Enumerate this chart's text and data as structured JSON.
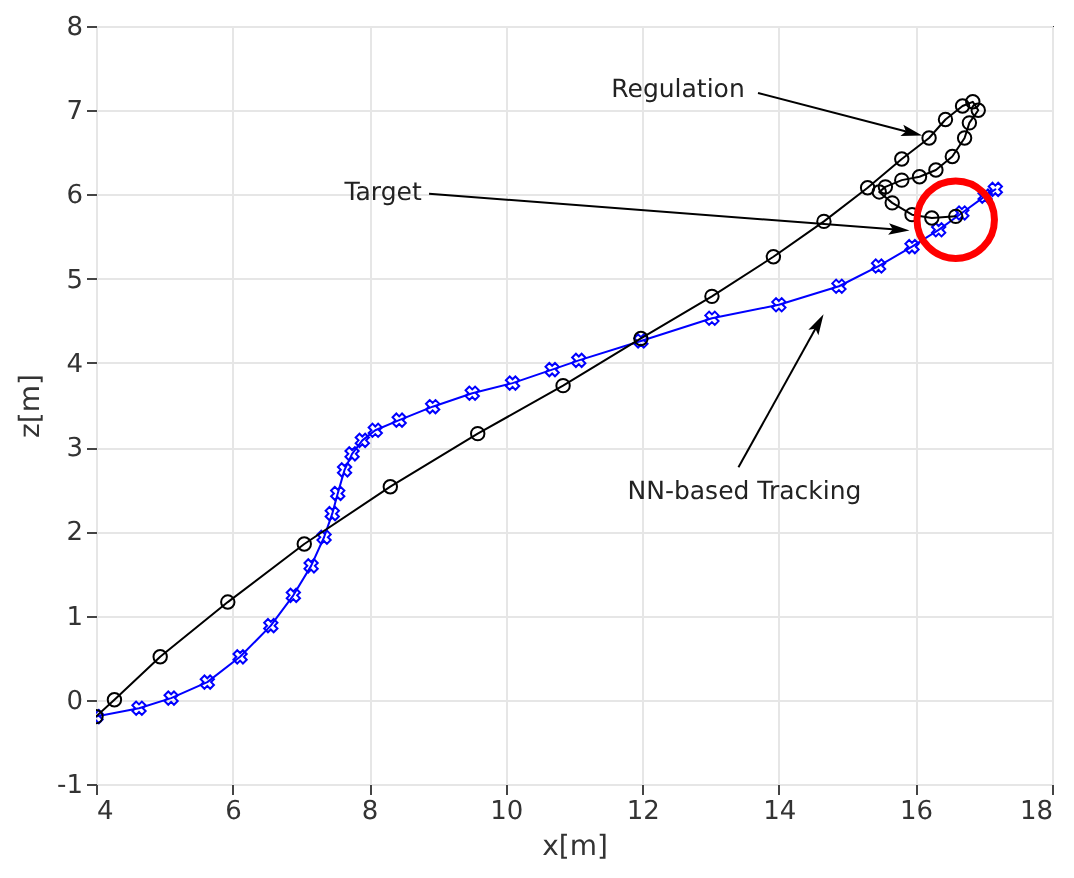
{
  "chart_data": {
    "type": "line",
    "xlabel": "x[m]",
    "ylabel": "z[m]",
    "xlim": [
      4,
      18
    ],
    "xticks": [
      4,
      6,
      8,
      10,
      12,
      14,
      16,
      18
    ],
    "ylim": [
      -1,
      8
    ],
    "yticks": [
      -1,
      0,
      1,
      2,
      3,
      4,
      5,
      6,
      7,
      8
    ],
    "grid": true,
    "series": [
      {
        "color": "#0000ff",
        "marker": "cross",
        "x": [
          4.0,
          4.63,
          5.1,
          5.63,
          6.11,
          6.56,
          6.89,
          7.15,
          7.34,
          7.46,
          7.54,
          7.64,
          7.75,
          7.9,
          8.09,
          8.44,
          8.93,
          9.51,
          10.1,
          10.68,
          11.07,
          11.98,
          13.02,
          14.0,
          14.88,
          15.46,
          15.95,
          16.34,
          16.68,
          17.02,
          17.17
        ],
        "values": [
          -0.2,
          -0.1,
          0.02,
          0.21,
          0.51,
          0.88,
          1.24,
          1.59,
          1.93,
          2.21,
          2.45,
          2.73,
          2.92,
          3.08,
          3.2,
          3.32,
          3.48,
          3.64,
          3.76,
          3.92,
          4.03,
          4.26,
          4.53,
          4.69,
          4.91,
          5.15,
          5.38,
          5.58,
          5.78,
          5.98,
          6.06
        ]
      },
      {
        "color": "#000000",
        "marker": "circle",
        "x": [
          4.0,
          4.27,
          4.94,
          5.93,
          7.05,
          8.31,
          9.59,
          10.84,
          11.98,
          13.02,
          13.92,
          14.66,
          15.3,
          15.8,
          16.2,
          16.44,
          16.69,
          16.84,
          16.92,
          16.79,
          16.72,
          16.54,
          16.3,
          16.06,
          15.8,
          15.56,
          15.47,
          15.66,
          15.95,
          16.24,
          16.59
        ],
        "values": [
          -0.2,
          0.0,
          0.51,
          1.16,
          1.85,
          2.53,
          3.16,
          3.73,
          4.29,
          4.79,
          5.26,
          5.68,
          6.08,
          6.42,
          6.67,
          6.89,
          7.05,
          7.1,
          7.0,
          6.85,
          6.67,
          6.45,
          6.29,
          6.21,
          6.17,
          6.09,
          6.03,
          5.9,
          5.76,
          5.72,
          5.74
        ]
      },
      {
        "type": "scatter",
        "color": "#ff0000",
        "marker": "circle",
        "x": [
          16.59
        ],
        "values": [
          5.7
        ]
      }
    ],
    "annotations": [
      {
        "text": "Regulation",
        "x": 15.95,
        "y": 6.73
      },
      {
        "text": "Target",
        "x": 15.76,
        "y": 5.58
      },
      {
        "text": "NN-based Tracking",
        "x": 14.58,
        "y": 4.47
      }
    ]
  }
}
